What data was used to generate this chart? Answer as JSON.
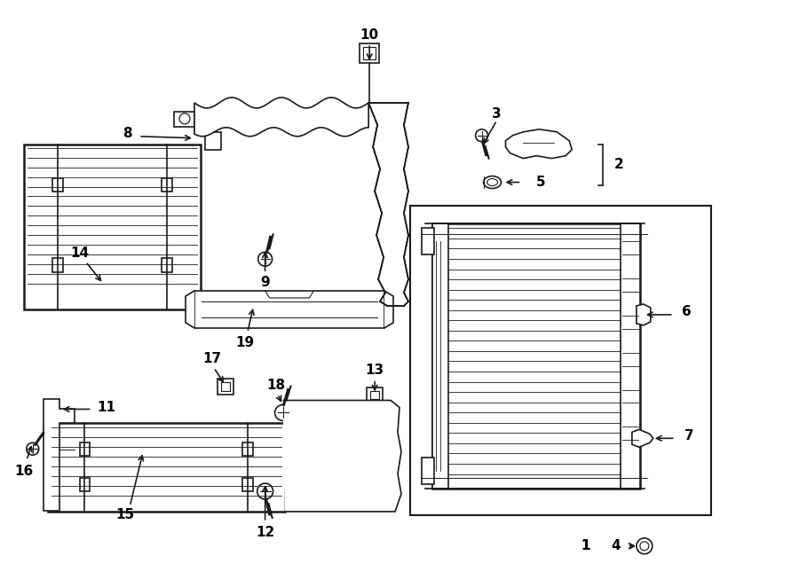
{
  "background_color": "#ffffff",
  "line_color": "#1a1a1a",
  "text_color": "#000000",
  "figure_width": 9.0,
  "figure_height": 6.62,
  "dpi": 100
}
